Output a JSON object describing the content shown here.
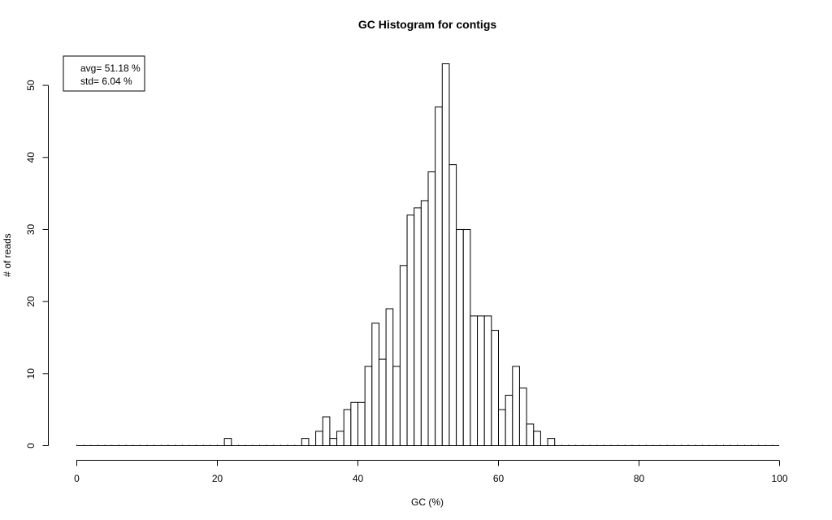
{
  "chart_data": {
    "type": "bar",
    "title": "GC Histogram for contigs",
    "xlabel": "GC (%)",
    "ylabel": "# of reads",
    "xlim": [
      0,
      100
    ],
    "ylim": [
      0,
      53
    ],
    "bin_width": 1,
    "x_ticks": [
      0,
      20,
      40,
      60,
      80,
      100
    ],
    "y_ticks": [
      0,
      10,
      20,
      30,
      40,
      50
    ],
    "legend_position": "top-left",
    "legend": [
      "avg= 51.18 %",
      "std= 6.04 %"
    ],
    "bins": [
      {
        "x": 21,
        "value": 1
      },
      {
        "x": 32,
        "value": 1
      },
      {
        "x": 34,
        "value": 2
      },
      {
        "x": 35,
        "value": 4
      },
      {
        "x": 36,
        "value": 1
      },
      {
        "x": 37,
        "value": 2
      },
      {
        "x": 38,
        "value": 5
      },
      {
        "x": 39,
        "value": 6
      },
      {
        "x": 40,
        "value": 6
      },
      {
        "x": 41,
        "value": 11
      },
      {
        "x": 42,
        "value": 17
      },
      {
        "x": 43,
        "value": 12
      },
      {
        "x": 44,
        "value": 19
      },
      {
        "x": 45,
        "value": 11
      },
      {
        "x": 46,
        "value": 25
      },
      {
        "x": 47,
        "value": 32
      },
      {
        "x": 48,
        "value": 33
      },
      {
        "x": 49,
        "value": 34
      },
      {
        "x": 50,
        "value": 38
      },
      {
        "x": 51,
        "value": 47
      },
      {
        "x": 52,
        "value": 53
      },
      {
        "x": 53,
        "value": 39
      },
      {
        "x": 54,
        "value": 30
      },
      {
        "x": 55,
        "value": 30
      },
      {
        "x": 56,
        "value": 18
      },
      {
        "x": 57,
        "value": 18
      },
      {
        "x": 58,
        "value": 18
      },
      {
        "x": 59,
        "value": 16
      },
      {
        "x": 60,
        "value": 5
      },
      {
        "x": 61,
        "value": 7
      },
      {
        "x": 62,
        "value": 11
      },
      {
        "x": 63,
        "value": 8
      },
      {
        "x": 64,
        "value": 3
      },
      {
        "x": 65,
        "value": 2
      },
      {
        "x": 67,
        "value": 1
      }
    ]
  }
}
